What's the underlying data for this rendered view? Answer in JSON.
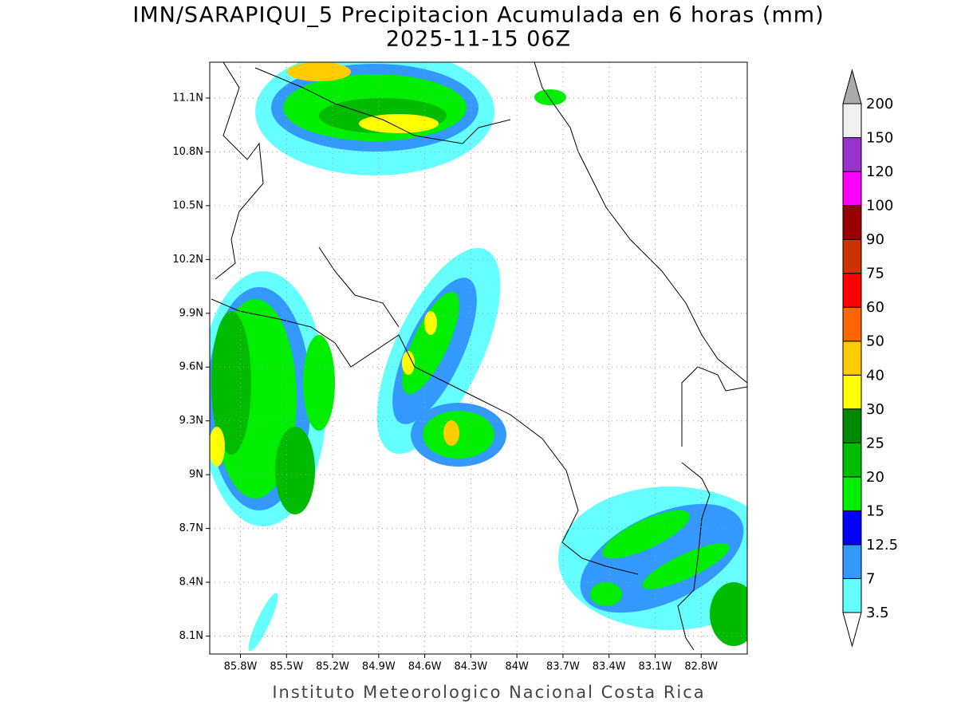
{
  "title": "IMN/SARAPIQUI_5 Precipitacion Acumulada en 6 horas (mm)",
  "subtitle": "2025-11-15 06Z",
  "footer": "Instituto Meteorologico Nacional Costa Rica",
  "map": {
    "lon_range": [
      -86.0,
      -82.5
    ],
    "lat_range": [
      8.0,
      11.3
    ],
    "grid": true,
    "lon_ticks": [
      {
        "value": -85.8,
        "label": "85.8W"
      },
      {
        "value": -85.5,
        "label": "85.5W"
      },
      {
        "value": -85.2,
        "label": "85.2W"
      },
      {
        "value": -84.9,
        "label": "84.9W"
      },
      {
        "value": -84.6,
        "label": "84.6W"
      },
      {
        "value": -84.3,
        "label": "84.3W"
      },
      {
        "value": -84.0,
        "label": "84W"
      },
      {
        "value": -83.7,
        "label": "83.7W"
      },
      {
        "value": -83.4,
        "label": "83.4W"
      },
      {
        "value": -83.1,
        "label": "83.1W"
      },
      {
        "value": -82.8,
        "label": "82.8W"
      }
    ],
    "lat_ticks": [
      {
        "value": 11.1,
        "label": "11.1N"
      },
      {
        "value": 10.8,
        "label": "10.8N"
      },
      {
        "value": 10.5,
        "label": "10.5N"
      },
      {
        "value": 10.2,
        "label": "10.2N"
      },
      {
        "value": 9.9,
        "label": "9.9N"
      },
      {
        "value": 9.6,
        "label": "9.6N"
      },
      {
        "value": 9.3,
        "label": "9.3N"
      },
      {
        "value": 9.0,
        "label": "9N"
      },
      {
        "value": 8.7,
        "label": "8.7N"
      },
      {
        "value": 8.4,
        "label": "8.4N"
      },
      {
        "value": 8.1,
        "label": "8.1N"
      }
    ]
  },
  "colorbar": {
    "levels": [
      3.5,
      7,
      12.5,
      15,
      20,
      25,
      30,
      40,
      50,
      60,
      75,
      90,
      100,
      120,
      150,
      200
    ],
    "colors": [
      "#ffffff",
      "#66ffff",
      "#3399ff",
      "#0000ff",
      "#00ee00",
      "#00bb00",
      "#008800",
      "#ffff00",
      "#ffcc00",
      "#ff6600",
      "#ff0000",
      "#cc3300",
      "#990000",
      "#ff00ff",
      "#9933cc",
      "#f0f0f0",
      "#aaaaaa"
    ]
  }
}
